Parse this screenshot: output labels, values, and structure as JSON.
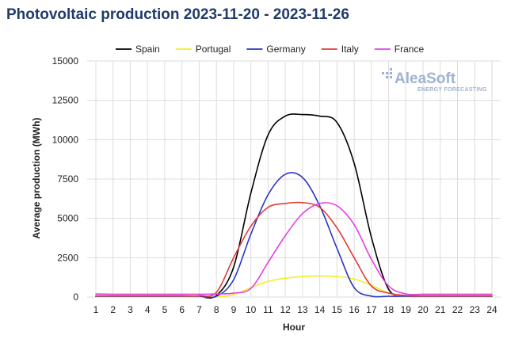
{
  "title": "Photovoltaic production 2023-11-20 - 2023-11-26",
  "watermark": {
    "name": "AleaSoft",
    "tagline": "ENERGY FORECASTING"
  },
  "chart_data": {
    "type": "line",
    "title": "Photovoltaic production 2023-11-20 - 2023-11-26",
    "xlabel": "Hour",
    "ylabel": "Average production (MWh)",
    "x": [
      1,
      2,
      3,
      4,
      5,
      6,
      7,
      8,
      9,
      10,
      11,
      12,
      13,
      14,
      15,
      16,
      17,
      18,
      19,
      20,
      21,
      22,
      23,
      24
    ],
    "ylim": [
      0,
      15000
    ],
    "yticks": [
      0,
      2500,
      5000,
      7500,
      10000,
      12500,
      15000
    ],
    "ytick_labels": [
      "0",
      "2500",
      "5000",
      "7500",
      "10000",
      "12500",
      "15000"
    ],
    "grid": true,
    "legend_position": "top",
    "series": [
      {
        "name": "Spain",
        "color": "#000000",
        "values": [
          20,
          20,
          20,
          20,
          20,
          20,
          20,
          100,
          1900,
          6600,
          10300,
          11500,
          11600,
          11500,
          11100,
          8500,
          3800,
          500,
          50,
          20,
          20,
          20,
          20,
          20
        ]
      },
      {
        "name": "Portugal",
        "color": "#f2ef22",
        "values": [
          0,
          0,
          0,
          0,
          0,
          0,
          0,
          0,
          150,
          600,
          1000,
          1200,
          1300,
          1350,
          1300,
          1150,
          750,
          250,
          30,
          0,
          0,
          0,
          0,
          0
        ]
      },
      {
        "name": "Germany",
        "color": "#2b35c4",
        "values": [
          50,
          50,
          50,
          50,
          50,
          50,
          50,
          50,
          1100,
          4000,
          6500,
          7800,
          7600,
          5800,
          3100,
          600,
          60,
          50,
          50,
          50,
          50,
          50,
          50,
          50
        ]
      },
      {
        "name": "Italy",
        "color": "#e23b35",
        "values": [
          80,
          80,
          80,
          80,
          80,
          80,
          80,
          300,
          2500,
          4500,
          5700,
          5950,
          6000,
          5700,
          4400,
          2500,
          700,
          250,
          100,
          80,
          80,
          80,
          80,
          80
        ]
      },
      {
        "name": "France",
        "color": "#e63fe6",
        "values": [
          200,
          180,
          180,
          180,
          180,
          180,
          180,
          200,
          250,
          550,
          2200,
          3900,
          5300,
          5950,
          5800,
          4600,
          2400,
          700,
          200,
          180,
          180,
          180,
          180,
          180
        ]
      }
    ]
  }
}
